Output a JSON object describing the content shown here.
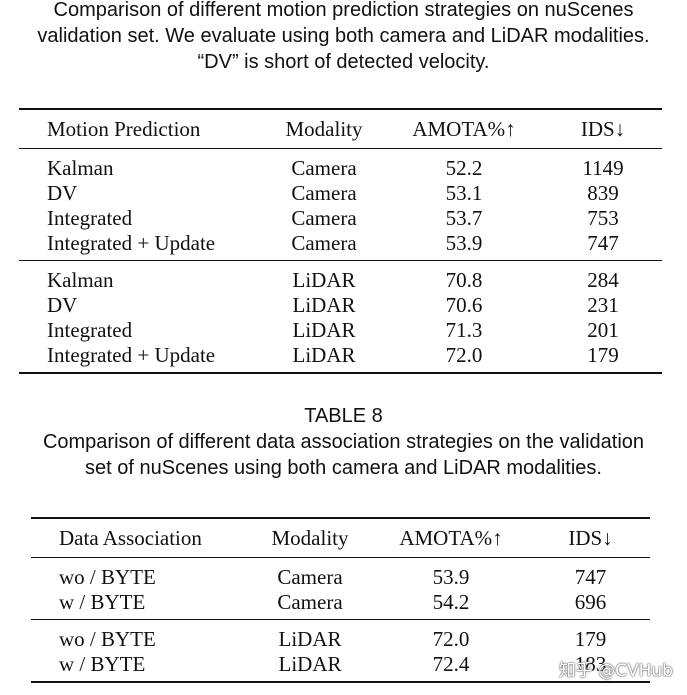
{
  "table7": {
    "caption": [
      "Comparison of different motion prediction strategies on nuScenes",
      "validation set. We evaluate using both camera and LiDAR modalities.",
      "“DV” is short of detected velocity."
    ],
    "headers": [
      "Motion Prediction",
      "Modality",
      "AMOTA%↑",
      "IDS↓"
    ],
    "groups": [
      [
        [
          "Kalman",
          "Camera",
          "52.2",
          "1149"
        ],
        [
          "DV",
          "Camera",
          "53.1",
          "839"
        ],
        [
          "Integrated",
          "Camera",
          "53.7",
          "753"
        ],
        [
          "Integrated + Update",
          "Camera",
          "53.9",
          "747"
        ]
      ],
      [
        [
          "Kalman",
          "LiDAR",
          "70.8",
          "284"
        ],
        [
          "DV",
          "LiDAR",
          "70.6",
          "231"
        ],
        [
          "Integrated",
          "LiDAR",
          "71.3",
          "201"
        ],
        [
          "Integrated + Update",
          "LiDAR",
          "72.0",
          "179"
        ]
      ]
    ]
  },
  "table8": {
    "label": "TABLE 8",
    "caption": [
      "Comparison of different data association strategies on the validation",
      "set of nuScenes using both camera and LiDAR modalities."
    ],
    "headers": [
      "Data Association",
      "Modality",
      "AMOTA%↑",
      "IDS↓"
    ],
    "groups": [
      [
        [
          "wo / BYTE",
          "Camera",
          "53.9",
          "747"
        ],
        [
          "w / BYTE",
          "Camera",
          "54.2",
          "696"
        ]
      ],
      [
        [
          "wo / BYTE",
          "LiDAR",
          "72.0",
          "179"
        ],
        [
          "w / BYTE",
          "LiDAR",
          "72.4",
          "183"
        ]
      ]
    ]
  },
  "watermark": "知乎 @CVHub"
}
